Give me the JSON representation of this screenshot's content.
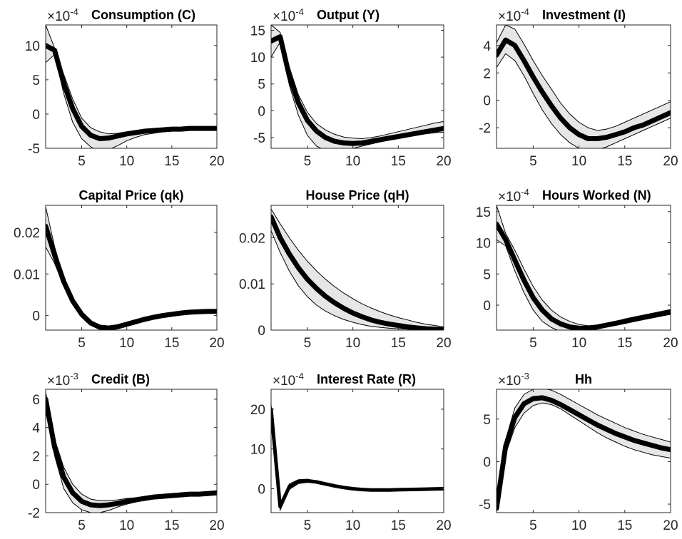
{
  "colors": {
    "median_line": "#000000",
    "band_fill": "#e6e6e6",
    "band_edge": "#000000",
    "axes": "#262626"
  },
  "chart_data": [
    {
      "type": "area",
      "title": "Consumption (C)",
      "multiplier": "×10",
      "exponent": "-4",
      "xlim": [
        1,
        20
      ],
      "ylim": [
        -5,
        13
      ],
      "xticks": [
        "5",
        "10",
        "15",
        "20"
      ],
      "yticks": [
        "-5",
        "0",
        "5",
        "10"
      ],
      "x": [
        1,
        2,
        3,
        4,
        5,
        6,
        7,
        8,
        9,
        10,
        11,
        12,
        13,
        14,
        15,
        16,
        17,
        18,
        19,
        20
      ],
      "median": [
        10,
        9.3,
        4.5,
        0.8,
        -1.8,
        -3.1,
        -3.6,
        -3.5,
        -3.2,
        -2.9,
        -2.7,
        -2.5,
        -2.4,
        -2.3,
        -2.2,
        -2.2,
        -2.1,
        -2.1,
        -2.1,
        -2.1
      ],
      "lower": [
        7.5,
        8.7,
        3.0,
        -1.2,
        -3.6,
        -4.8,
        -5.5,
        -5.2,
        -4.6,
        -3.9,
        -3.4,
        -3.0,
        -2.8,
        -2.6,
        -2.5,
        -2.4,
        -2.4,
        -2.3,
        -2.3,
        -2.3
      ],
      "upper": [
        13,
        9.6,
        5.8,
        2.2,
        -0.6,
        -2.0,
        -2.6,
        -2.9,
        -2.8,
        -2.6,
        -2.4,
        -2.3,
        -2.2,
        -2.1,
        -2.0,
        -2.0,
        -1.9,
        -1.9,
        -1.9,
        -1.9
      ]
    },
    {
      "type": "area",
      "title": "Output (Y)",
      "multiplier": "×10",
      "exponent": "-4",
      "xlim": [
        1,
        20
      ],
      "ylim": [
        -7,
        16
      ],
      "xticks": [
        "5",
        "10",
        "15",
        "20"
      ],
      "yticks": [
        "-5",
        "0",
        "5",
        "10",
        "15"
      ],
      "x": [
        1,
        2,
        3,
        4,
        5,
        6,
        7,
        8,
        9,
        10,
        11,
        12,
        13,
        14,
        15,
        16,
        17,
        18,
        19,
        20
      ],
      "median": [
        13,
        13.8,
        6.5,
        1.5,
        -1.8,
        -3.8,
        -5.0,
        -5.7,
        -6.0,
        -6.1,
        -6.0,
        -5.7,
        -5.4,
        -5.1,
        -4.8,
        -4.5,
        -4.2,
        -3.9,
        -3.6,
        -3.3
      ],
      "lower": [
        10,
        12.8,
        4.8,
        -0.8,
        -4.6,
        -6.6,
        -7.4,
        -7.6,
        -7.4,
        -7.0,
        -6.6,
        -6.2,
        -5.8,
        -5.4,
        -5.1,
        -4.8,
        -4.5,
        -4.3,
        -4.1,
        -4.0
      ],
      "upper": [
        16,
        14.6,
        8.2,
        3.0,
        -0.3,
        -2.4,
        -3.6,
        -4.4,
        -4.9,
        -5.1,
        -5.2,
        -5.0,
        -4.7,
        -4.3,
        -3.9,
        -3.5,
        -3.1,
        -2.7,
        -2.3,
        -2.0
      ]
    },
    {
      "type": "area",
      "title": "Investment (I)",
      "multiplier": "×10",
      "exponent": "-4",
      "xlim": [
        1,
        20
      ],
      "ylim": [
        -3.5,
        5.5
      ],
      "xticks": [
        "5",
        "10",
        "15",
        "20"
      ],
      "yticks": [
        "-2",
        "0",
        "2",
        "4"
      ],
      "x": [
        1,
        2,
        3,
        4,
        5,
        6,
        7,
        8,
        9,
        10,
        11,
        12,
        13,
        14,
        15,
        16,
        17,
        18,
        19,
        20
      ],
      "median": [
        3.3,
        4.4,
        4.0,
        2.9,
        1.7,
        0.6,
        -0.4,
        -1.3,
        -2.0,
        -2.5,
        -2.8,
        -2.8,
        -2.7,
        -2.5,
        -2.3,
        -2.0,
        -1.8,
        -1.5,
        -1.2,
        -0.9
      ],
      "lower": [
        2.4,
        3.4,
        2.9,
        1.8,
        0.5,
        -0.7,
        -1.7,
        -2.5,
        -3.1,
        -3.5,
        -3.6,
        -3.6,
        -3.4,
        -3.1,
        -2.8,
        -2.5,
        -2.2,
        -1.9,
        -1.6,
        -1.3
      ],
      "upper": [
        4.2,
        5.5,
        5.2,
        4.1,
        2.9,
        1.8,
        0.8,
        -0.2,
        -1.0,
        -1.6,
        -2.0,
        -2.2,
        -2.1,
        -1.9,
        -1.6,
        -1.3,
        -1.0,
        -0.7,
        -0.4,
        -0.1
      ]
    },
    {
      "type": "area",
      "title": "Capital Price (qk)",
      "multiplier": "",
      "exponent": "",
      "xlim": [
        1,
        20
      ],
      "ylim": [
        -0.0035,
        0.0265
      ],
      "xticks": [
        "5",
        "10",
        "15",
        "20"
      ],
      "yticks": [
        "0",
        "0.01",
        "0.02"
      ],
      "x": [
        1,
        2,
        3,
        4,
        5,
        6,
        7,
        8,
        9,
        10,
        11,
        12,
        13,
        14,
        15,
        16,
        17,
        18,
        19,
        20
      ],
      "median": [
        0.0215,
        0.0145,
        0.0082,
        0.0035,
        0.0003,
        -0.0018,
        -0.0028,
        -0.003,
        -0.0027,
        -0.0021,
        -0.0015,
        -0.0009,
        -0.0004,
        0.0,
        0.0003,
        0.0006,
        0.0008,
        0.0009,
        0.001,
        0.001
      ],
      "lower": [
        0.0165,
        0.0125,
        0.0072,
        0.0028,
        -0.0003,
        -0.0022,
        -0.0031,
        -0.0033,
        -0.003,
        -0.0024,
        -0.0018,
        -0.0012,
        -0.0006,
        -0.0002,
        0.0001,
        0.0004,
        0.0006,
        0.0007,
        0.0008,
        0.0008
      ],
      "upper": [
        0.0262,
        0.0165,
        0.0092,
        0.0042,
        0.0009,
        -0.0014,
        -0.0025,
        -0.0027,
        -0.0024,
        -0.0018,
        -0.0012,
        -0.0006,
        -0.0001,
        0.0003,
        0.0006,
        0.0009,
        0.0011,
        0.0012,
        0.0013,
        0.0013
      ]
    },
    {
      "type": "area",
      "title": "House Price (qH)",
      "multiplier": "",
      "exponent": "",
      "xlim": [
        1,
        20
      ],
      "ylim": [
        0,
        0.027
      ],
      "xticks": [
        "5",
        "10",
        "15",
        "20"
      ],
      "yticks": [
        "0",
        "0.01",
        "0.02"
      ],
      "x": [
        1,
        2,
        3,
        4,
        5,
        6,
        7,
        8,
        9,
        10,
        11,
        12,
        13,
        14,
        15,
        16,
        17,
        18,
        19,
        20
      ],
      "median": [
        0.0245,
        0.02,
        0.0165,
        0.0135,
        0.011,
        0.009,
        0.0073,
        0.0059,
        0.0047,
        0.0037,
        0.0029,
        0.0022,
        0.0017,
        0.0013,
        0.001,
        0.0007,
        0.0005,
        0.0003,
        0.0002,
        0.0001
      ],
      "lower": [
        0.0215,
        0.0168,
        0.0128,
        0.0096,
        0.0072,
        0.0054,
        0.0041,
        0.0031,
        0.0023,
        0.0017,
        0.0012,
        0.0008,
        0.0006,
        0.0004,
        0.0003,
        0.0002,
        0.0001,
        0.0,
        0.0,
        0.0
      ],
      "upper": [
        0.0262,
        0.023,
        0.02,
        0.0173,
        0.0149,
        0.0128,
        0.011,
        0.0094,
        0.008,
        0.0068,
        0.0057,
        0.0048,
        0.004,
        0.0033,
        0.0027,
        0.0022,
        0.0017,
        0.0013,
        0.001,
        0.0007
      ]
    },
    {
      "type": "area",
      "title": "Hours Worked (N)",
      "multiplier": "×10",
      "exponent": "-4",
      "xlim": [
        1,
        20
      ],
      "ylim": [
        -4,
        16
      ],
      "xticks": [
        "5",
        "10",
        "15",
        "20"
      ],
      "yticks": [
        "0",
        "5",
        "10",
        "15"
      ],
      "x": [
        1,
        2,
        3,
        4,
        5,
        6,
        7,
        8,
        9,
        10,
        11,
        12,
        13,
        14,
        15,
        16,
        17,
        18,
        19,
        20
      ],
      "median": [
        13,
        10.5,
        7.2,
        4.0,
        1.2,
        -0.8,
        -2.2,
        -3.0,
        -3.5,
        -3.7,
        -3.7,
        -3.5,
        -3.2,
        -2.9,
        -2.6,
        -2.3,
        -2.0,
        -1.7,
        -1.4,
        -1.1
      ],
      "lower": [
        10.5,
        9.5,
        5.5,
        2.0,
        -0.8,
        -2.6,
        -3.6,
        -4.2,
        -4.3,
        -4.2,
        -4.0,
        -3.8,
        -3.5,
        -3.2,
        -2.9,
        -2.6,
        -2.3,
        -2.0,
        -1.7,
        -1.5
      ],
      "upper": [
        16,
        11.5,
        8.8,
        5.8,
        3.0,
        0.8,
        -0.8,
        -1.9,
        -2.6,
        -3.1,
        -3.3,
        -3.2,
        -2.9,
        -2.6,
        -2.2,
        -1.9,
        -1.6,
        -1.3,
        -1.0,
        -0.7
      ]
    },
    {
      "type": "area",
      "title": "Credit (B)",
      "multiplier": "×10",
      "exponent": "-3",
      "xlim": [
        1,
        20
      ],
      "ylim": [
        -2,
        6.7
      ],
      "xticks": [
        "5",
        "10",
        "15",
        "20"
      ],
      "yticks": [
        "-2",
        "0",
        "2",
        "4",
        "6"
      ],
      "x": [
        1,
        2,
        3,
        4,
        5,
        6,
        7,
        8,
        9,
        10,
        11,
        12,
        13,
        14,
        15,
        16,
        17,
        18,
        19,
        20
      ],
      "median": [
        6.0,
        2.6,
        0.5,
        -0.6,
        -1.2,
        -1.45,
        -1.5,
        -1.45,
        -1.35,
        -1.2,
        -1.1,
        -1.0,
        -0.9,
        -0.85,
        -0.8,
        -0.75,
        -0.7,
        -0.7,
        -0.65,
        -0.6
      ],
      "lower": [
        5.5,
        2.0,
        -0.3,
        -1.3,
        -1.8,
        -2.0,
        -2.0,
        -1.85,
        -1.6,
        -1.4,
        -1.25,
        -1.1,
        -1.0,
        -0.95,
        -0.9,
        -0.85,
        -0.8,
        -0.75,
        -0.75,
        -0.7
      ],
      "upper": [
        6.5,
        3.2,
        1.2,
        0.0,
        -0.7,
        -1.05,
        -1.15,
        -1.15,
        -1.1,
        -1.0,
        -0.95,
        -0.85,
        -0.8,
        -0.75,
        -0.7,
        -0.65,
        -0.6,
        -0.6,
        -0.55,
        -0.5
      ]
    },
    {
      "type": "area",
      "title": "Interest Rate (R)",
      "multiplier": "×10",
      "exponent": "-4",
      "xlim": [
        1,
        20
      ],
      "ylim": [
        -6,
        25
      ],
      "xticks": [
        "5",
        "10",
        "15",
        "20"
      ],
      "yticks": [
        "0",
        "10",
        "20"
      ],
      "x": [
        1,
        2,
        3,
        4,
        5,
        6,
        7,
        8,
        9,
        10,
        11,
        12,
        13,
        14,
        15,
        16,
        17,
        18,
        19,
        20
      ],
      "median": [
        20,
        -4.5,
        0.5,
        1.8,
        2.0,
        1.7,
        1.2,
        0.7,
        0.3,
        0.0,
        -0.2,
        -0.3,
        -0.3,
        -0.3,
        -0.25,
        -0.2,
        -0.15,
        -0.1,
        -0.05,
        0.0
      ],
      "lower": [
        18.8,
        -5.4,
        -0.2,
        1.3,
        1.6,
        1.4,
        0.9,
        0.4,
        0.1,
        -0.2,
        -0.4,
        -0.5,
        -0.5,
        -0.5,
        -0.45,
        -0.4,
        -0.35,
        -0.3,
        -0.25,
        -0.2
      ],
      "upper": [
        21.2,
        -3.6,
        1.2,
        2.3,
        2.4,
        2.0,
        1.5,
        1.0,
        0.5,
        0.2,
        0.0,
        -0.1,
        -0.1,
        -0.1,
        -0.05,
        0.0,
        0.05,
        0.1,
        0.15,
        0.2
      ],
      "line_width": 5
    },
    {
      "type": "area",
      "title": "Hh",
      "multiplier": "×10",
      "exponent": "-3",
      "xlim": [
        1,
        20
      ],
      "ylim": [
        -6,
        8.5
      ],
      "xticks": [
        "5",
        "10",
        "15",
        "20"
      ],
      "yticks": [
        "-5",
        "0",
        "5"
      ],
      "x": [
        1,
        2,
        3,
        4,
        5,
        6,
        7,
        8,
        9,
        10,
        11,
        12,
        13,
        14,
        15,
        16,
        17,
        18,
        19,
        20
      ],
      "median": [
        -5.5,
        1.8,
        5.2,
        6.8,
        7.4,
        7.5,
        7.2,
        6.7,
        6.1,
        5.5,
        4.9,
        4.3,
        3.8,
        3.3,
        2.9,
        2.5,
        2.2,
        1.9,
        1.6,
        1.4
      ],
      "lower": [
        -5.7,
        0.9,
        4.0,
        5.7,
        6.6,
        6.9,
        6.7,
        6.2,
        5.5,
        4.8,
        4.1,
        3.4,
        2.8,
        2.3,
        1.8,
        1.4,
        1.1,
        0.8,
        0.6,
        0.4
      ],
      "upper": [
        -5.3,
        2.6,
        6.3,
        7.9,
        8.5,
        8.6,
        8.4,
        7.9,
        7.3,
        6.7,
        6.1,
        5.5,
        5.0,
        4.5,
        4.0,
        3.6,
        3.2,
        2.9,
        2.6,
        2.3
      ]
    }
  ]
}
